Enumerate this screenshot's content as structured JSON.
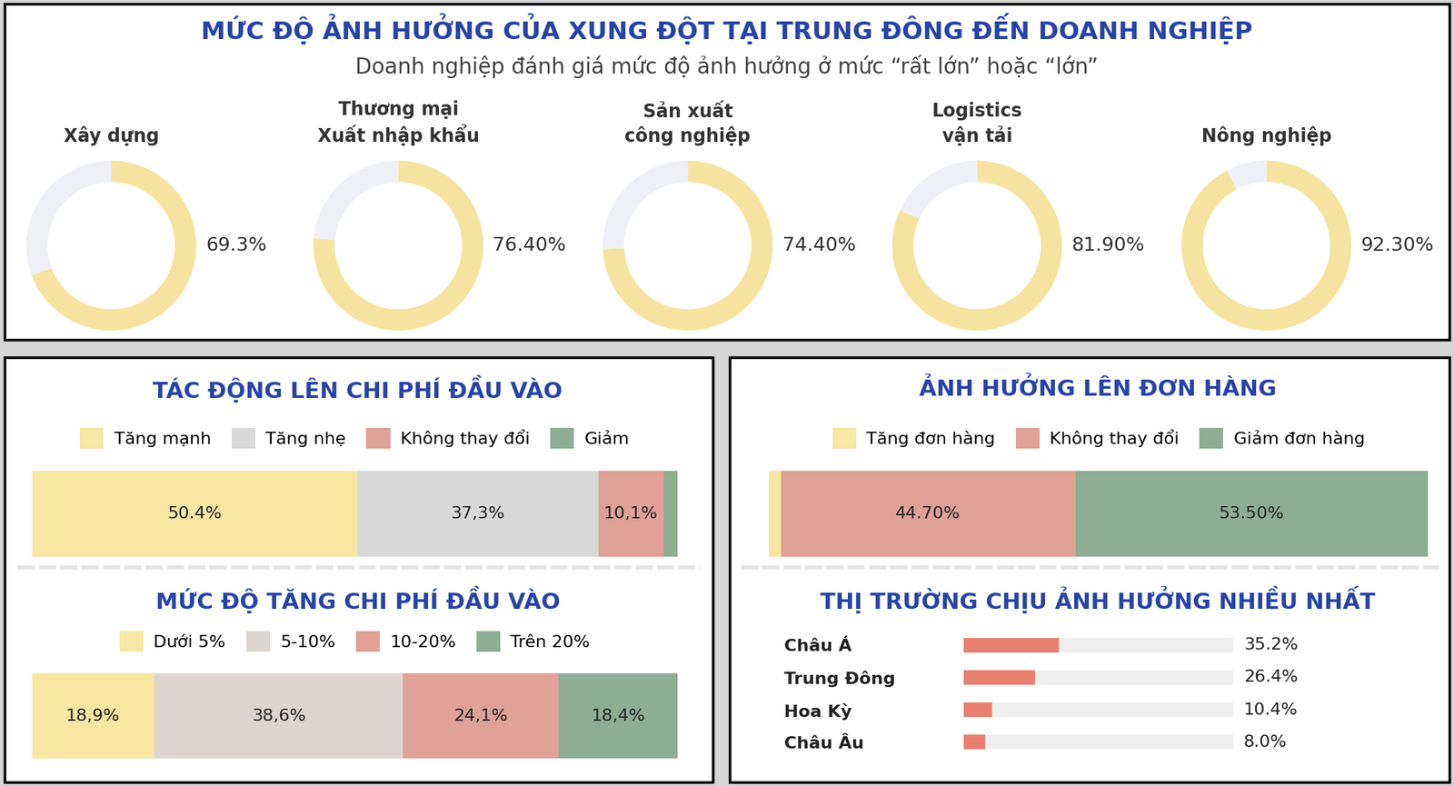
{
  "title": "MỨC ĐỘ ẢNH HƯỞNG CỦA XUNG ĐỘT TẠI TRUNG ĐÔNG ĐẾN DOANH NGHIỆP",
  "subtitle": "Doanh nghiệp đánh giá mức độ ảnh hưởng ở mức “rất lớn” hoặc “lớn”",
  "chart_data": [
    {
      "type": "donut",
      "categories": [
        "Xây dựng",
        "Thương mại\nXuất nhập khẩu",
        "Sản xuất\ncông nghiệp",
        "Logistics\nvận tải",
        "Nông nghiệp"
      ],
      "values": [
        69.3,
        76.4,
        74.4,
        81.9,
        92.3
      ],
      "value_labels": [
        "69.3%",
        "76.40%",
        "74.40%",
        "81.90%",
        "92.30%"
      ],
      "ylim": [
        0,
        100
      ],
      "color": "#F6E3A1",
      "data_labels": true,
      "tick_labels": false
    },
    {
      "type": "bar",
      "orientation": "horizontal",
      "stacked": true,
      "title": "TÁC ĐỘNG LÊN CHI PHÍ ĐẦU VÀO",
      "categories": [
        null
      ],
      "series": [
        {
          "name": "Tăng mạnh",
          "color": "#F8E6A3",
          "values": [
            50.4
          ],
          "value_labels": [
            "50.4%"
          ]
        },
        {
          "name": "Tăng nhẹ",
          "color": "#D9D9D9",
          "values": [
            37.3
          ],
          "value_labels": [
            "37,3%"
          ]
        },
        {
          "name": "Không thay đổi",
          "color": "#E0A196",
          "values": [
            10.1
          ],
          "value_labels": [
            "10,1%"
          ]
        },
        {
          "name": "Giảm",
          "color": "#8EAE93",
          "values": [
            2.2
          ]
        }
      ],
      "xlim": [
        0,
        100
      ],
      "legend": "upper center",
      "data_labels": true,
      "tick_labels": false
    },
    {
      "type": "bar",
      "orientation": "horizontal",
      "stacked": true,
      "title": "MỨC ĐỘ TĂNG CHI PHÍ ĐẦU VÀO",
      "categories": [
        null
      ],
      "series": [
        {
          "name": "Dưới 5%",
          "color": "#F8E6A3",
          "values": [
            18.9
          ],
          "value_labels": [
            "18,9%"
          ]
        },
        {
          "name": "5-10%",
          "color": "#DDD6D0",
          "values": [
            38.6
          ],
          "value_labels": [
            "38,6%"
          ]
        },
        {
          "name": "10-20%",
          "color": "#E0A196",
          "values": [
            24.1
          ],
          "value_labels": [
            "24,1%"
          ]
        },
        {
          "name": "Trên 20%",
          "color": "#8EAE93",
          "values": [
            18.4
          ],
          "value_labels": [
            "18,4%"
          ]
        }
      ],
      "xlim": [
        0,
        100
      ],
      "legend": "upper center",
      "data_labels": true,
      "tick_labels": false
    },
    {
      "type": "bar",
      "orientation": "horizontal",
      "stacked": true,
      "title": "ẢNH HƯỞNG LÊN ĐƠN HÀNG",
      "categories": [
        null
      ],
      "series": [
        {
          "name": "Tăng đơn hàng",
          "color": "#F8E6A3",
          "values": [
            1.8
          ]
        },
        {
          "name": "Không thay đổi",
          "color": "#E0A196",
          "values": [
            44.7
          ],
          "value_labels": [
            "44.70%"
          ]
        },
        {
          "name": "Giảm đơn hàng",
          "color": "#8EAE93",
          "values": [
            53.5
          ],
          "value_labels": [
            "53.50%"
          ]
        }
      ],
      "xlim": [
        0,
        100
      ],
      "legend": "upper center",
      "data_labels": true,
      "tick_labels": false
    },
    {
      "type": "bar",
      "orientation": "horizontal",
      "title": "THỊ TRƯỜNG CHỊU ẢNH HƯỞNG NHIỀU NHẤT",
      "categories": [
        "Châu Á",
        "Trung Đông",
        "Hoa Kỳ",
        "Châu Âu"
      ],
      "values": [
        35.2,
        26.4,
        10.4,
        8.0
      ],
      "value_labels": [
        "35.2%",
        "26.4%",
        "10.4%",
        "8.0%"
      ],
      "color": "#E8806F",
      "xlim": [
        0,
        100
      ],
      "data_labels": true,
      "tick_labels": "y"
    }
  ]
}
